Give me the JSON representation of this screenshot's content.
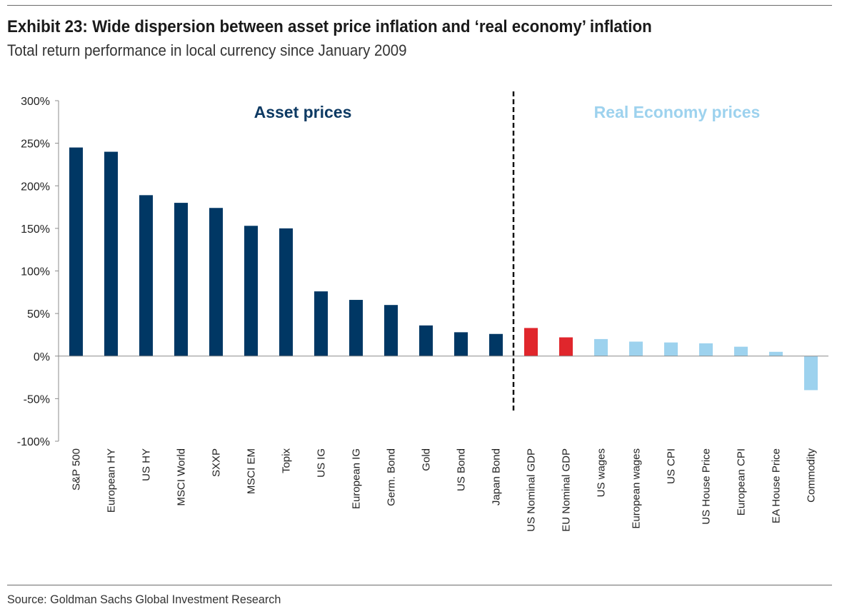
{
  "header": {
    "title": "Exhibit 23: Wide dispersion between asset price inflation and ‘real economy’ inflation",
    "subtitle": "Total return performance in local currency since January 2009"
  },
  "footer": {
    "source": "Source: Goldman Sachs Global Investment Research"
  },
  "colors": {
    "asset": "#003764",
    "gdp": "#e0262c",
    "real_economy": "#9dd2ee",
    "axis": "#8c8c8c",
    "asset_label": "#0e3a63",
    "real_label": "#9dd2ee"
  },
  "chart_data": {
    "type": "bar",
    "title": "Exhibit 23: Wide dispersion between asset price inflation and ‘real economy’ inflation",
    "xlabel": "",
    "ylabel": "",
    "ylim": [
      -100,
      300
    ],
    "yticks": [
      300,
      250,
      200,
      150,
      100,
      50,
      0,
      -50,
      -100
    ],
    "ytick_labels": [
      "300%",
      "250%",
      "200%",
      "150%",
      "100%",
      "50%",
      "0%",
      "-50%",
      "-100%"
    ],
    "grid": false,
    "sections": [
      {
        "label": "Asset prices",
        "key": "asset"
      },
      {
        "label": "Real Economy prices",
        "key": "real"
      }
    ],
    "categories": [
      "S&P 500",
      "European HY",
      "US HY",
      "MSCI World",
      "SXXP",
      "MSCI EM",
      "Topix",
      "US IG",
      "European IG",
      "Germ. Bond",
      "Gold",
      "US Bond",
      "Japan Bond",
      "US Nominal GDP",
      "EU Nominal GDP",
      "US wages",
      "European wages",
      "US CPI",
      "US House Price",
      "European CPI",
      "EA House Price",
      "Commodity"
    ],
    "values": [
      245,
      240,
      189,
      180,
      174,
      153,
      150,
      76,
      66,
      60,
      36,
      28,
      26,
      33,
      22,
      20,
      17,
      16,
      15,
      11,
      5,
      -40
    ],
    "groups": [
      "asset",
      "asset",
      "asset",
      "asset",
      "asset",
      "asset",
      "asset",
      "asset",
      "asset",
      "asset",
      "asset",
      "asset",
      "asset",
      "gdp",
      "gdp",
      "real_economy",
      "real_economy",
      "real_economy",
      "real_economy",
      "real_economy",
      "real_economy",
      "real_economy"
    ],
    "divider_after_index": 12
  }
}
